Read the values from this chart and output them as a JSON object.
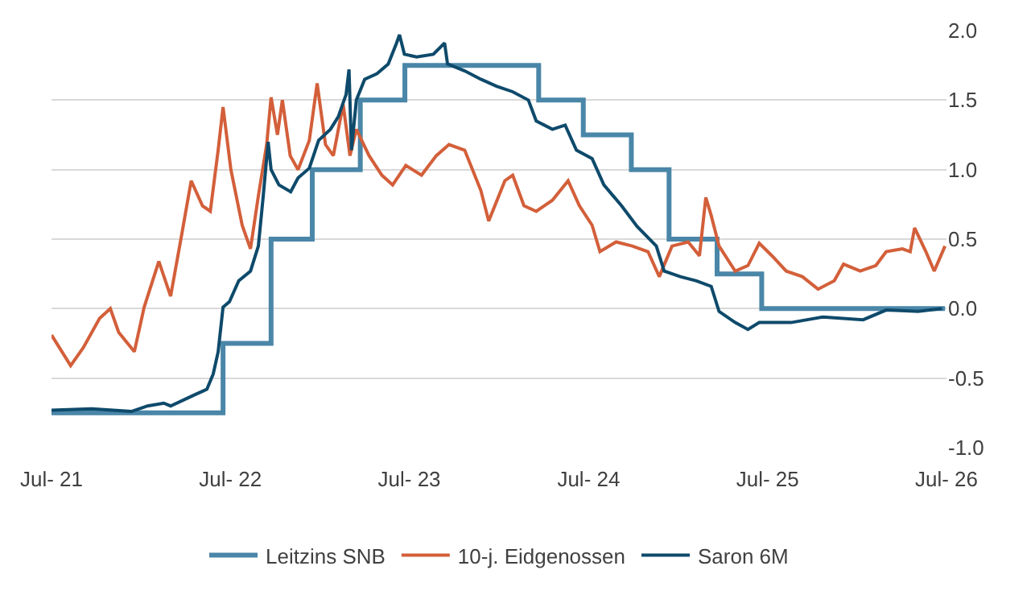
{
  "chart_data": {
    "type": "line",
    "xlim": [
      "2021-07-01",
      "2026-07-01"
    ],
    "xticks": [
      {
        "value": "2021-07-01",
        "label": "Jul- 21"
      },
      {
        "value": "2022-07-01",
        "label": "Jul- 22"
      },
      {
        "value": "2023-07-01",
        "label": "Jul- 23"
      },
      {
        "value": "2024-07-01",
        "label": "Jul- 24"
      },
      {
        "value": "2025-07-01",
        "label": "Jul- 25"
      },
      {
        "value": "2026-07-01",
        "label": "Jul- 26"
      }
    ],
    "ylim": [
      -1.0,
      2.0
    ],
    "yticks": [
      {
        "value": -1.0,
        "label": "-1.0"
      },
      {
        "value": -0.5,
        "label": "-0.5"
      },
      {
        "value": 0,
        "label": "0.0"
      },
      {
        "value": 0.5,
        "label": "0.5"
      },
      {
        "value": 1.0,
        "label": "1.0"
      },
      {
        "value": 1.5,
        "label": "1.5"
      },
      {
        "value": 2.0,
        "label": "2.0"
      }
    ],
    "grid": "y",
    "legend": "bottom",
    "marker": "none",
    "line_style": "solid",
    "series": [
      {
        "name": "Leitzins SNB",
        "type": "step",
        "color": "#4a86a8",
        "x": [
          "2021-07-01",
          "2022-06-16",
          "2022-09-22",
          "2022-12-15",
          "2023-03-23",
          "2023-06-22",
          "2024-03-21",
          "2024-06-20",
          "2024-09-26",
          "2024-12-12",
          "2025-03-20",
          "2025-06-19",
          "2026-06-28"
        ],
        "values": [
          -0.75,
          -0.25,
          0.5,
          1.0,
          1.5,
          1.75,
          1.5,
          1.25,
          1.0,
          0.5,
          0.25,
          0,
          0
        ]
      },
      {
        "name": "10-j. Eidgenossen",
        "color": "#d35f3a",
        "x": [
          "2021-07-01",
          "2021-08-09",
          "2021-09-04",
          "2021-10-07",
          "2021-10-29",
          "2021-11-15",
          "2021-12-17",
          "2022-01-06",
          "2022-02-05",
          "2022-03-01",
          "2022-03-23",
          "2022-04-12",
          "2022-05-05",
          "2022-05-21",
          "2022-06-06",
          "2022-06-16",
          "2022-07-02",
          "2022-07-25",
          "2022-08-11",
          "2022-08-27",
          "2022-09-13",
          "2022-09-22",
          "2022-10-05",
          "2022-10-15",
          "2022-10-31",
          "2022-11-16",
          "2022-12-09",
          "2022-12-25",
          "2023-01-11",
          "2023-01-27",
          "2023-02-16",
          "2023-03-02",
          "2023-03-15",
          "2023-04-10",
          "2023-05-06",
          "2023-05-28",
          "2023-06-24",
          "2023-07-26",
          "2023-08-25",
          "2023-09-20",
          "2023-10-22",
          "2023-11-24",
          "2023-12-10",
          "2024-01-12",
          "2024-01-28",
          "2024-02-20",
          "2024-03-16",
          "2024-04-18",
          "2024-05-20",
          "2024-06-12",
          "2024-07-08",
          "2024-07-24",
          "2024-08-26",
          "2024-09-28",
          "2024-10-30",
          "2024-11-22",
          "2024-12-18",
          "2025-01-20",
          "2025-02-12",
          "2025-02-25",
          "2025-03-08",
          "2025-03-24",
          "2025-04-26",
          "2025-05-22",
          "2025-06-14",
          "2025-07-10",
          "2025-08-08",
          "2025-09-10",
          "2025-10-12",
          "2025-11-14",
          "2025-12-03",
          "2026-01-06",
          "2026-02-07",
          "2026-02-28",
          "2026-04-02",
          "2026-04-18",
          "2026-04-27",
          "2026-05-20",
          "2026-06-06",
          "2026-06-28"
        ],
        "values": [
          -0.19,
          -0.41,
          -0.28,
          -0.07,
          0.0,
          -0.17,
          -0.31,
          0.01,
          0.34,
          0.09,
          0.52,
          0.92,
          0.74,
          0.7,
          1.14,
          1.45,
          1.0,
          0.6,
          0.43,
          0.81,
          1.18,
          1.52,
          1.25,
          1.5,
          1.1,
          1.0,
          1.21,
          1.62,
          1.18,
          1.1,
          1.47,
          1.1,
          1.29,
          1.1,
          0.96,
          0.89,
          1.03,
          0.96,
          1.1,
          1.18,
          1.14,
          0.85,
          0.63,
          0.92,
          0.96,
          0.74,
          0.7,
          0.78,
          0.92,
          0.74,
          0.6,
          0.41,
          0.48,
          0.45,
          0.41,
          0.23,
          0.45,
          0.48,
          0.38,
          0.8,
          0.67,
          0.45,
          0.27,
          0.31,
          0.47,
          0.38,
          0.27,
          0.23,
          0.14,
          0.2,
          0.32,
          0.27,
          0.31,
          0.41,
          0.43,
          0.41,
          0.58,
          0.41,
          0.27,
          0.45
        ]
      },
      {
        "name": "Saron 6M",
        "color": "#0e4a6b",
        "x": [
          "2021-07-01",
          "2021-09-21",
          "2021-12-11",
          "2022-01-13",
          "2022-02-15",
          "2022-03-01",
          "2022-04-19",
          "2022-05-14",
          "2022-05-27",
          "2022-06-06",
          "2022-06-16",
          "2022-06-29",
          "2022-07-18",
          "2022-08-11",
          "2022-08-27",
          "2022-09-06",
          "2022-09-16",
          "2022-09-22",
          "2022-10-08",
          "2022-11-01",
          "2022-11-16",
          "2022-12-09",
          "2022-12-28",
          "2023-01-21",
          "2023-02-06",
          "2023-02-22",
          "2023-02-28",
          "2023-03-05",
          "2023-03-15",
          "2023-04-01",
          "2023-04-26",
          "2023-05-19",
          "2023-06-05",
          "2023-06-11",
          "2023-06-21",
          "2023-07-16",
          "2023-08-19",
          "2023-09-11",
          "2023-09-17",
          "2023-10-22",
          "2023-11-24",
          "2023-12-26",
          "2024-01-28",
          "2024-02-29",
          "2024-03-16",
          "2024-04-18",
          "2024-05-14",
          "2024-06-06",
          "2024-07-08",
          "2024-08-01",
          "2024-09-06",
          "2024-10-08",
          "2024-11-16",
          "2024-12-02",
          "2025-01-04",
          "2025-02-06",
          "2025-03-08",
          "2025-03-24",
          "2025-04-26",
          "2025-05-22",
          "2025-06-14",
          "2025-08-18",
          "2025-10-22",
          "2026-01-12",
          "2026-02-28",
          "2026-05-04",
          "2026-06-22"
        ],
        "values": [
          -0.73,
          -0.72,
          -0.74,
          -0.7,
          -0.68,
          -0.7,
          -0.62,
          -0.58,
          -0.47,
          -0.31,
          0.01,
          0.05,
          0.2,
          0.27,
          0.45,
          0.81,
          1.2,
          1.0,
          0.89,
          0.84,
          0.94,
          1.01,
          1.21,
          1.29,
          1.38,
          1.54,
          1.72,
          1.14,
          1.5,
          1.65,
          1.69,
          1.76,
          1.91,
          1.97,
          1.83,
          1.81,
          1.83,
          1.91,
          1.76,
          1.71,
          1.65,
          1.6,
          1.56,
          1.5,
          1.35,
          1.29,
          1.32,
          1.14,
          1.08,
          0.89,
          0.74,
          0.59,
          0.45,
          0.27,
          0.23,
          0.2,
          0.16,
          -0.02,
          -0.1,
          -0.15,
          -0.1,
          -0.1,
          -0.06,
          -0.08,
          -0.01,
          -0.02,
          0.0
        ]
      }
    ]
  }
}
